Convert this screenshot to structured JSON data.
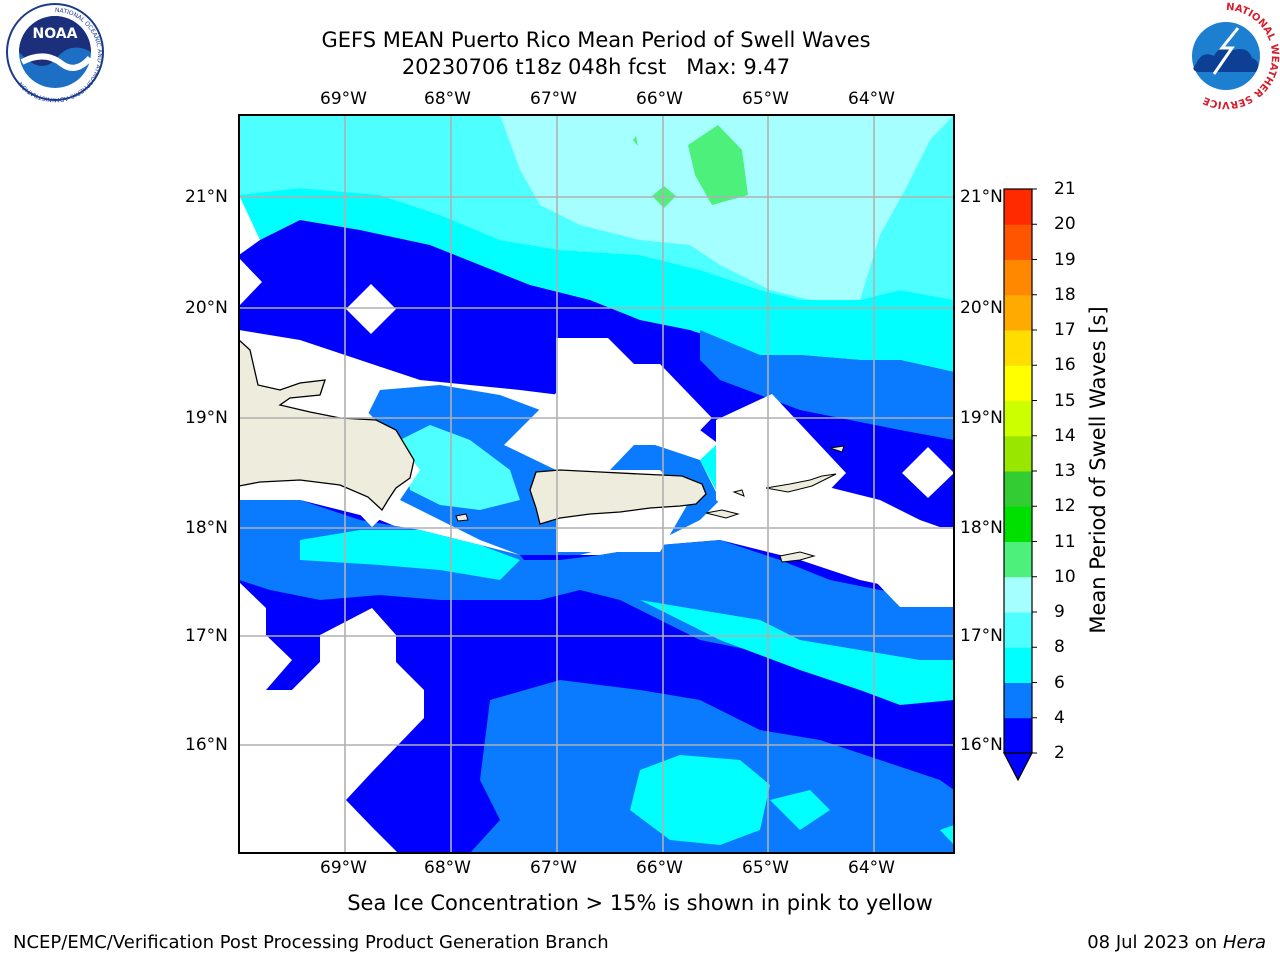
{
  "title": {
    "line1": "GEFS MEAN Puerto Rico Mean Period of Swell Waves",
    "line2": "20230706 t18z 048h fcst   Max: 9.47"
  },
  "map": {
    "lon_labels": [
      "69°W",
      "68°W",
      "67°W",
      "66°W",
      "65°W",
      "64°W"
    ],
    "lat_labels": [
      "21°N",
      "20°N",
      "19°N",
      "18°N",
      "17°N",
      "16°N"
    ],
    "land_color": "#eeecdc",
    "grid_color": "#b0b0b0"
  },
  "colorbar": {
    "title": "Mean Period of Swell Waves [s]",
    "levels": [
      "2",
      "4",
      "6",
      "8",
      "9",
      "10",
      "11",
      "12",
      "13",
      "14",
      "15",
      "16",
      "17",
      "18",
      "19",
      "20",
      "21"
    ],
    "colors": [
      "#0000ff",
      "#0a7aff",
      "#00ffff",
      "#4dffff",
      "#a6ffff",
      "#4df07a",
      "#00e000",
      "#33cc33",
      "#99e600",
      "#ccff00",
      "#ffff00",
      "#ffdd00",
      "#ffaa00",
      "#ff8800",
      "#ff5500",
      "#ff2a00"
    ],
    "under_color": "#0000ff"
  },
  "caption": "Sea Ice Concentration > 15% is shown in pink to yellow",
  "footer": {
    "left": "NCEP/EMC/Verification Post Processing Product Generation Branch",
    "right_prefix": "08 Jul 2023 on ",
    "right_machine": "Hera"
  },
  "logos": {
    "noaa_text": "NOAA",
    "noaa_ring_text": "NATIONAL OCEANIC AND ATMOSPHERIC ADMINISTRATION",
    "nws_ring_text": "NATIONAL WEATHER SERVICE"
  }
}
